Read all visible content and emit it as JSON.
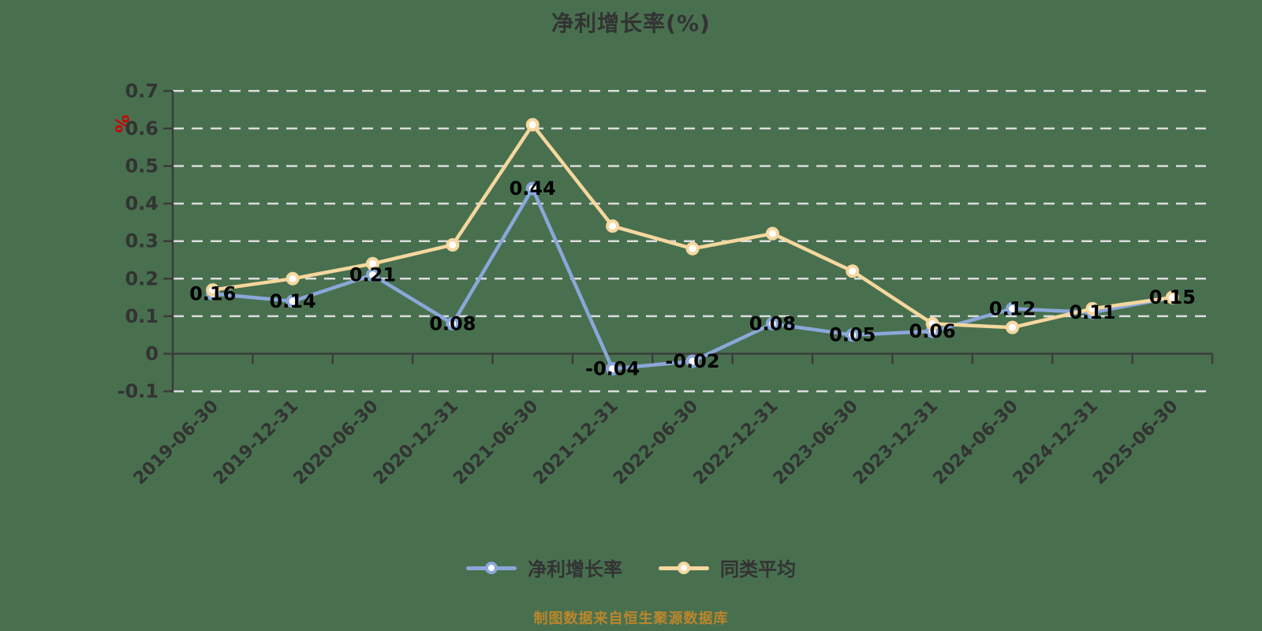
{
  "title": "净利增长率(%)",
  "y_axis_unit": "%",
  "footer": "制图数据来自恒生聚源数据库",
  "legend": {
    "items": [
      {
        "label": "净利增长率"
      },
      {
        "label": "同类平均"
      }
    ]
  },
  "colors": {
    "background": "#48704F",
    "title": "#333333",
    "axis": "#3C3C3C",
    "grid": "#DCDCDC",
    "tick_label": "#333333",
    "data_label": "#000000",
    "series_net_profit": "#8BA7D9",
    "series_category_avg": "#F6D79E",
    "marker_fill": "#FFFFFF",
    "footer": "#BC862B",
    "unit": "#CC0000"
  },
  "chart_data": {
    "type": "line",
    "title": "净利增长率(%)",
    "xlabel": "",
    "ylabel": "%",
    "categories": [
      "2019-06-30",
      "2019-12-31",
      "2020-06-30",
      "2020-12-31",
      "2021-06-30",
      "2021-12-31",
      "2022-06-30",
      "2022-12-31",
      "2023-06-30",
      "2023-12-31",
      "2024-06-30",
      "2024-12-31",
      "2025-06-30"
    ],
    "series": [
      {
        "name": "净利增长率",
        "color": "#8BA7D9",
        "show_labels": true,
        "values": [
          0.16,
          0.14,
          0.21,
          0.08,
          0.44,
          -0.04,
          -0.02,
          0.08,
          0.05,
          0.06,
          0.12,
          0.11,
          0.15
        ]
      },
      {
        "name": "同类平均",
        "color": "#F6D79E",
        "show_labels": false,
        "values": [
          0.17,
          0.2,
          0.24,
          0.29,
          0.61,
          0.34,
          0.28,
          0.32,
          0.22,
          0.08,
          0.07,
          0.12,
          0.15
        ]
      }
    ],
    "ylim": [
      -0.1,
      0.7
    ],
    "yticks": [
      0.7,
      0.6,
      0.5,
      0.4,
      0.3,
      0.2,
      0.1,
      0,
      -0.1
    ],
    "grid": "dashed-horizontal",
    "legend_position": "bottom"
  }
}
